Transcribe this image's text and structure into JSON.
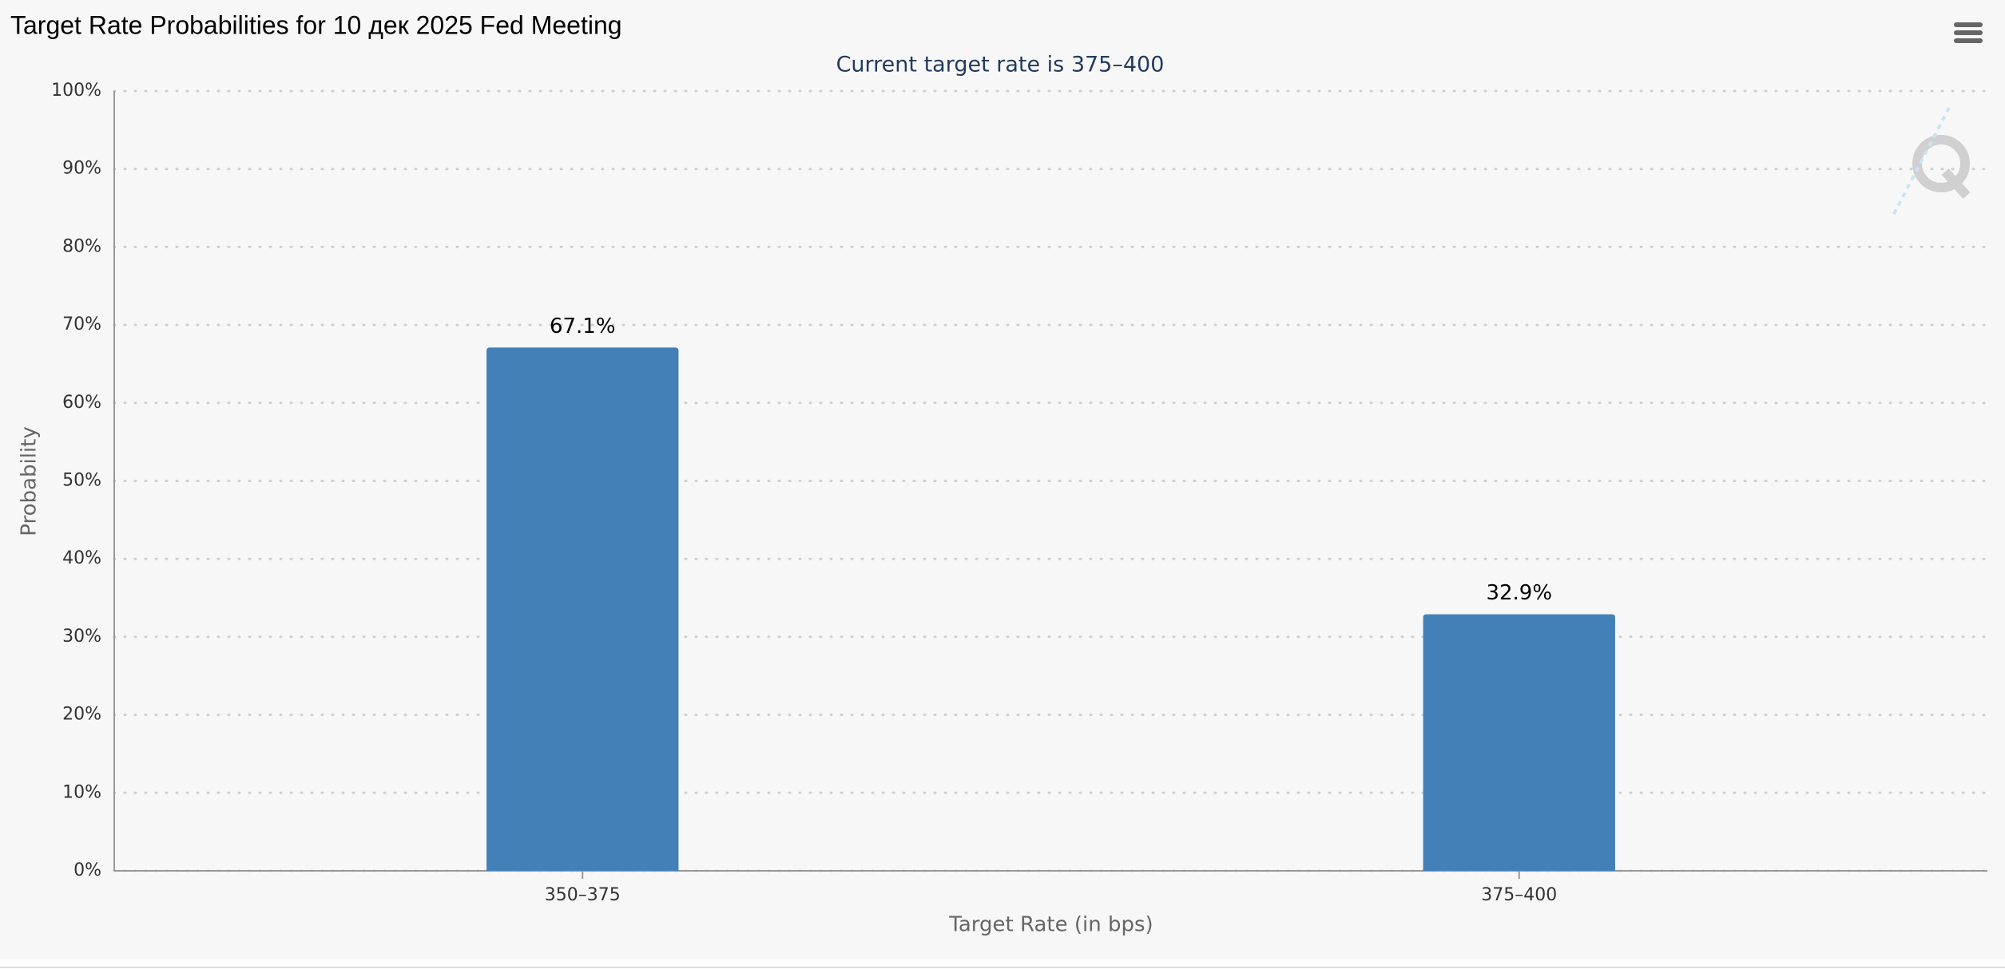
{
  "chart_data": {
    "type": "bar",
    "title": "Target Rate Probabilities for 10 дек 2025 Fed Meeting",
    "subtitle": "Current target rate is 375–400",
    "x_label": "Target Rate (in bps)",
    "y_label": "Probability",
    "categories": [
      "350–375",
      "375–400"
    ],
    "values": [
      67.1,
      32.9
    ],
    "value_labels": [
      "67.1%",
      "32.9%"
    ],
    "color": "#4380b7",
    "ylim": [
      0,
      100
    ],
    "yticks": [
      {
        "value": 0,
        "label": "0%"
      },
      {
        "value": 10,
        "label": "10%"
      },
      {
        "value": 20,
        "label": "20%"
      },
      {
        "value": 30,
        "label": "30%"
      },
      {
        "value": 40,
        "label": "40%"
      },
      {
        "value": 50,
        "label": "50%"
      },
      {
        "value": 60,
        "label": "60%"
      },
      {
        "value": 70,
        "label": "70%"
      },
      {
        "value": 80,
        "label": "80%"
      },
      {
        "value": 90,
        "label": "90%"
      },
      {
        "value": 100,
        "label": "100%"
      }
    ],
    "grid": true
  }
}
